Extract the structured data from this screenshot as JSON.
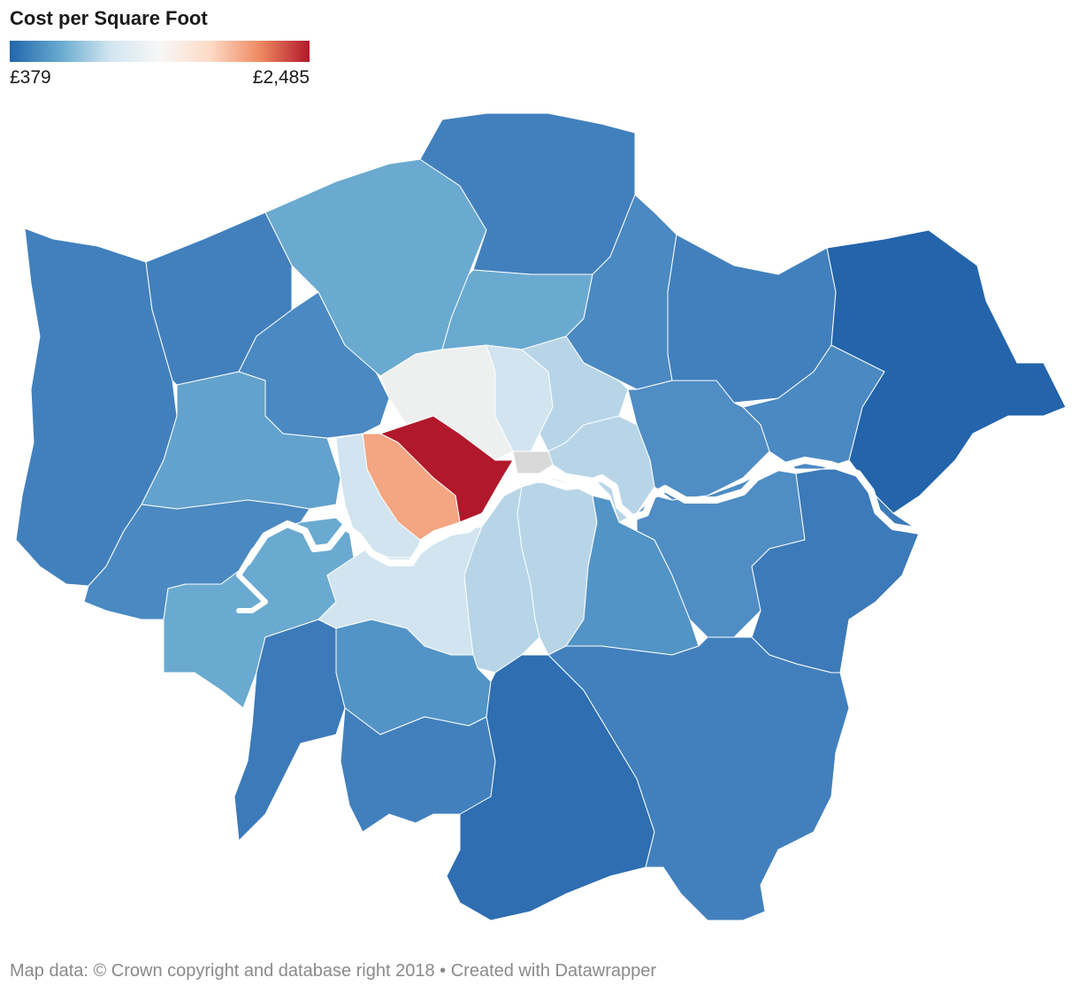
{
  "title": "Cost per Square Foot",
  "legend": {
    "min_label": "£379",
    "max_label": "£2,485",
    "stops": [
      "#2166ac",
      "#67a9cf",
      "#d1e5f0",
      "#f7f7f7",
      "#fddbc7",
      "#ef8a62",
      "#b2182b"
    ]
  },
  "footer": {
    "source": "Map data: © Crown copyright and database right 2018",
    "credit": "Created with Datawrapper"
  },
  "colors": {
    "river": "#ffffff",
    "no_data": "#d9d9d9"
  }
}
